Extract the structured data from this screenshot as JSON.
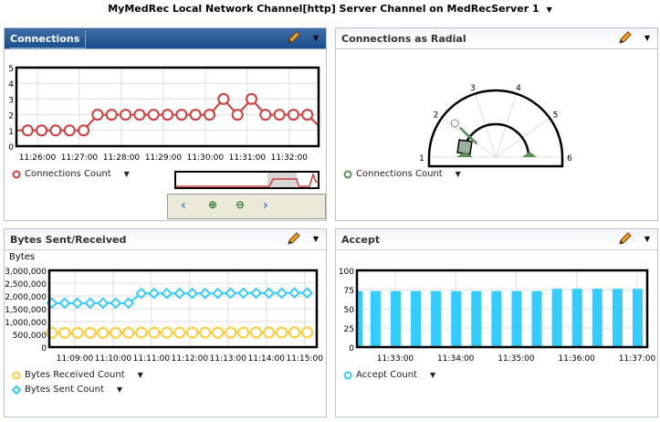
{
  "page_title": "MyMedRec Local Network Channel[http] Server Channel on MedRecServer 1",
  "panels": {
    "connections": {
      "title": "Connections",
      "legend": "Connections Count"
    },
    "radial": {
      "title": "Connections as Radial",
      "legend": "Connections Count"
    },
    "bytes": {
      "title": "Bytes Sent/Received",
      "y_title": "Bytes",
      "legend_received": "Bytes Received Count",
      "legend_sent": "Bytes Sent Count"
    },
    "accept": {
      "title": "Accept",
      "legend": "Accept Count"
    }
  },
  "icons": {
    "edit": "pencil-icon",
    "menu": "chevron-down-icon",
    "nav_prev": "chevron-left-icon",
    "zoom_in": "zoom-in-icon",
    "zoom_out": "zoom-out-icon",
    "nav_next": "chevron-right-icon"
  },
  "chart_data": [
    {
      "type": "line",
      "name": "connections",
      "ylim": [
        0,
        5
      ],
      "yticks": [
        "0",
        "1",
        "2",
        "3",
        "4",
        "5"
      ],
      "xlim": [
        "11:25:30",
        "11:32:42"
      ],
      "xticks": [
        "11:26:00",
        "11:27:00",
        "11:28:00",
        "11:29:00",
        "11:30:00",
        "11:31:00",
        "11:32:00"
      ],
      "series": [
        {
          "name": "Connections Count",
          "color": "#d43a3a",
          "x": [
            "11:25:46",
            "11:26:06",
            "11:26:26",
            "11:26:46",
            "11:27:06",
            "11:27:26",
            "11:27:46",
            "11:28:06",
            "11:28:26",
            "11:28:46",
            "11:29:06",
            "11:29:26",
            "11:29:46",
            "11:30:06",
            "11:30:26",
            "11:30:46",
            "11:31:06",
            "11:31:26",
            "11:31:46",
            "11:32:06",
            "11:32:26"
          ],
          "y": [
            1,
            1,
            1,
            1,
            1,
            2,
            2,
            2,
            2,
            2,
            2,
            2,
            2,
            2,
            3,
            2,
            3,
            2,
            2,
            2,
            2
          ]
        }
      ],
      "grid": true
    },
    {
      "type": "gauge",
      "name": "radial",
      "min": 1,
      "max": 6,
      "ticks": [
        "1",
        "2",
        "3",
        "4",
        "5",
        "6"
      ],
      "value": 2.1,
      "color": "#5a8f5a",
      "legend": "Connections Count"
    },
    {
      "type": "line",
      "name": "bytes",
      "ylabel": "Bytes",
      "ylim": [
        0,
        3000000
      ],
      "yticks": [
        "0",
        "500,000",
        "1,000,000",
        "1,500,000",
        "2,000,000",
        "2,500,000",
        "3,000,000"
      ],
      "xlim": [
        "11:08:20",
        "11:15:19"
      ],
      "xticks": [
        "11:09:00",
        "11:10:00",
        "11:11:00",
        "11:12:00",
        "11:13:00",
        "11:13:00",
        "11:14:00",
        "11:15:00"
      ],
      "series": [
        {
          "name": "Bytes Received Count",
          "color": "#ffcc33",
          "marker": "circle",
          "x": [
            "11:08:24",
            "11:08:44",
            "11:09:04",
            "11:09:24",
            "11:09:44",
            "11:10:04",
            "11:10:24",
            "11:10:44",
            "11:11:04",
            "11:11:24",
            "11:11:44",
            "11:12:04",
            "11:12:24",
            "11:12:44",
            "11:13:04",
            "11:13:24",
            "11:13:44",
            "11:14:04",
            "11:14:24",
            "11:14:44",
            "11:15:04"
          ],
          "y": [
            560000,
            560000,
            560000,
            560000,
            560000,
            560000,
            560000,
            565000,
            565000,
            565000,
            565000,
            565000,
            565000,
            565000,
            570000,
            570000,
            570000,
            570000,
            570000,
            575000,
            575000
          ]
        },
        {
          "name": "Bytes Sent Count",
          "color": "#33ccff",
          "marker": "diamond",
          "x": [
            "11:08:24",
            "11:08:44",
            "11:09:04",
            "11:09:24",
            "11:09:44",
            "11:10:04",
            "11:10:24",
            "11:10:44",
            "11:11:04",
            "11:11:24",
            "11:11:44",
            "11:12:04",
            "11:12:24",
            "11:12:44",
            "11:13:04",
            "11:13:24",
            "11:13:44",
            "11:14:04",
            "11:14:24",
            "11:14:44",
            "11:15:04"
          ],
          "y": [
            1720000,
            1720000,
            1720000,
            1720000,
            1720000,
            1720000,
            1720000,
            2100000,
            2100000,
            2100000,
            2100000,
            2100000,
            2100000,
            2100000,
            2110000,
            2110000,
            2110000,
            2110000,
            2110000,
            2120000,
            2120000
          ]
        }
      ],
      "grid": true
    },
    {
      "type": "bar",
      "name": "accept",
      "ylim": [
        0,
        100
      ],
      "yticks": [
        "0",
        "25",
        "50",
        "75",
        "100"
      ],
      "xlim": [
        "11:32:22",
        "11:37:10"
      ],
      "xticks": [
        "11:33:00",
        "11:34:00",
        "11:35:00",
        "11:36:00",
        "11:37:00"
      ],
      "series": [
        {
          "name": "Accept Count",
          "color": "#33ccff",
          "x": [
            "11:32:22",
            "11:32:40",
            "11:33:00",
            "11:33:20",
            "11:33:40",
            "11:34:00",
            "11:34:20",
            "11:34:40",
            "11:35:00",
            "11:35:20",
            "11:35:40",
            "11:36:00",
            "11:36:20",
            "11:36:40",
            "11:37:00"
          ],
          "y": [
            73,
            73,
            73,
            73,
            73,
            73,
            73,
            73,
            73,
            73,
            76,
            76,
            76,
            76,
            76
          ]
        }
      ],
      "grid": true
    }
  ]
}
